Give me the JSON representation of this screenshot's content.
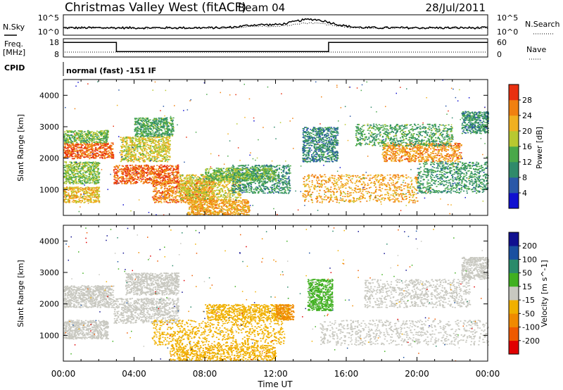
{
  "header": {
    "station": "Christmas Valley West (fitACF)",
    "beam": "Beam 04",
    "date": "28/Jul/2011"
  },
  "sky_panel": {
    "left_label": "N.Sky",
    "left_ticks": [
      "10^5",
      "10^0"
    ],
    "right_label": "N.Search",
    "right_ticks": [
      "10^5",
      "10^0"
    ]
  },
  "freq_panel": {
    "left_label_line1": "Freq.",
    "left_label_line2": "[MHz]",
    "left_ticks": [
      "18",
      "8"
    ],
    "right_label": "Nave",
    "right_ticks": [
      "60",
      "0"
    ],
    "freq_steps": [
      {
        "t": 0,
        "v": 16
      },
      {
        "t": 3.0,
        "v": 11
      },
      {
        "t": 15.0,
        "v": 16
      },
      {
        "t": 24,
        "v": 16
      }
    ]
  },
  "cpid": {
    "label": "CPID",
    "text": "normal (fast) -151 IF"
  },
  "time_axis": {
    "label": "Time UT",
    "ticks": [
      "00:00",
      "04:00",
      "08:00",
      "12:00",
      "16:00",
      "20:00",
      "00:00"
    ]
  },
  "colors": {
    "power": [
      "#1010d0",
      "#2a58a8",
      "#2f8a6a",
      "#4aa84a",
      "#b8c830",
      "#f0b020",
      "#f08010",
      "#e83010"
    ],
    "velocity": [
      "#e00000",
      "#ef5a00",
      "#f08a00",
      "#f0b000",
      "#c8c8c0",
      "#40b020",
      "#2a8a6a",
      "#1a50a0",
      "#101090"
    ],
    "frame": "#000000"
  },
  "chart_data": [
    {
      "type": "heatmap",
      "title": "Power",
      "xlabel": "Time UT",
      "ylabel": "Slant Range [km]",
      "xlim": [
        0,
        24
      ],
      "ylim": [
        180,
        4500
      ],
      "y_ticks": [
        "1000",
        "2000",
        "3000",
        "4000"
      ],
      "colorbar": {
        "label": "Power [dB]",
        "ticks": [
          "4",
          "8",
          "12",
          "16",
          "20",
          "24",
          "28"
        ],
        "range": [
          0,
          30
        ]
      },
      "regions": [
        {
          "t0": 0.0,
          "t1": 2.8,
          "r0": 2000,
          "r1": 2500,
          "v": 26
        },
        {
          "t0": 0.0,
          "t1": 2.5,
          "r0": 2500,
          "r1": 2900,
          "v": 14
        },
        {
          "t0": 0.0,
          "t1": 2.0,
          "r0": 1200,
          "r1": 1900,
          "v": 15
        },
        {
          "t0": 0.0,
          "t1": 2.0,
          "r0": 600,
          "r1": 1100,
          "v": 20
        },
        {
          "t0": 2.8,
          "t1": 6.5,
          "r0": 1200,
          "r1": 1800,
          "v": 26
        },
        {
          "t0": 3.2,
          "t1": 6.0,
          "r0": 1900,
          "r1": 2700,
          "v": 18
        },
        {
          "t0": 4.0,
          "t1": 6.2,
          "r0": 2700,
          "r1": 3300,
          "v": 12
        },
        {
          "t0": 5.0,
          "t1": 8.5,
          "r0": 600,
          "r1": 1300,
          "v": 24
        },
        {
          "t0": 6.5,
          "t1": 10.0,
          "r0": 700,
          "r1": 1500,
          "v": 18
        },
        {
          "t0": 7.0,
          "t1": 10.5,
          "r0": 200,
          "r1": 700,
          "v": 22
        },
        {
          "t0": 9.5,
          "t1": 12.8,
          "r0": 900,
          "r1": 1800,
          "v": 10
        },
        {
          "t0": 8.0,
          "t1": 12.0,
          "r0": 1300,
          "r1": 1700,
          "v": 14
        },
        {
          "t0": 13.5,
          "t1": 15.5,
          "r0": 1900,
          "r1": 3000,
          "v": 9
        },
        {
          "t0": 13.5,
          "t1": 20.0,
          "r0": 600,
          "r1": 1500,
          "v": 22
        },
        {
          "t0": 18.0,
          "t1": 22.5,
          "r0": 1900,
          "r1": 2500,
          "v": 23
        },
        {
          "t0": 16.5,
          "t1": 22.0,
          "r0": 2400,
          "r1": 3100,
          "v": 12
        },
        {
          "t0": 20.0,
          "t1": 24.0,
          "r0": 900,
          "r1": 1900,
          "v": 11
        },
        {
          "t0": 22.5,
          "t1": 24.0,
          "r0": 2800,
          "r1": 3500,
          "v": 10
        }
      ]
    },
    {
      "type": "heatmap",
      "title": "Velocity",
      "xlabel": "Time UT",
      "ylabel": "Slant Range [km]",
      "xlim": [
        0,
        24
      ],
      "ylim": [
        180,
        4500
      ],
      "y_ticks": [
        "1000",
        "2000",
        "3000",
        "4000"
      ],
      "colorbar": {
        "label": "Velocity [m s^-1]",
        "ticks": [
          "-200",
          "-100",
          "-50",
          "-15",
          "15",
          "50",
          "100",
          "200"
        ],
        "range": [
          -250,
          250
        ]
      },
      "regions": [
        {
          "t0": 0.0,
          "t1": 2.8,
          "r0": 1900,
          "r1": 2600,
          "v": 0
        },
        {
          "t0": 0.0,
          "t1": 2.5,
          "r0": 900,
          "r1": 1500,
          "v": 0
        },
        {
          "t0": 2.8,
          "t1": 6.5,
          "r0": 1400,
          "r1": 2200,
          "v": 0
        },
        {
          "t0": 3.5,
          "t1": 6.5,
          "r0": 2300,
          "r1": 3000,
          "v": 0
        },
        {
          "t0": 5.0,
          "t1": 12.5,
          "r0": 700,
          "r1": 1500,
          "v": -60
        },
        {
          "t0": 8.0,
          "t1": 12.8,
          "r0": 1500,
          "r1": 2000,
          "v": -60
        },
        {
          "t0": 6.0,
          "t1": 12.0,
          "r0": 200,
          "r1": 700,
          "v": -70
        },
        {
          "t0": 12.0,
          "t1": 13.0,
          "r0": 1500,
          "r1": 2000,
          "v": -120
        },
        {
          "t0": 13.8,
          "t1": 15.2,
          "r0": 1800,
          "r1": 2800,
          "v": 40
        },
        {
          "t0": 14.5,
          "t1": 24.0,
          "r0": 700,
          "r1": 1500,
          "v": 0
        },
        {
          "t0": 17.0,
          "t1": 23.0,
          "r0": 1900,
          "r1": 2800,
          "v": 0
        },
        {
          "t0": 22.5,
          "t1": 24.0,
          "r0": 2800,
          "r1": 3500,
          "v": 0
        }
      ]
    }
  ]
}
